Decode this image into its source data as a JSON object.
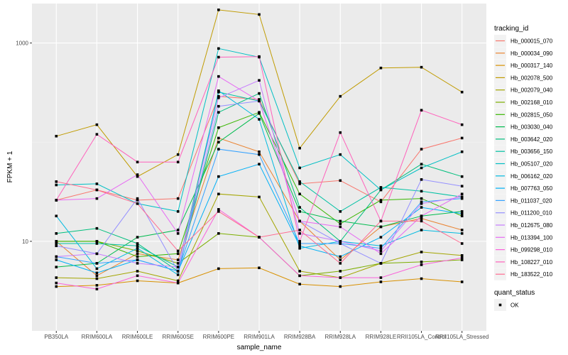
{
  "chart_data": {
    "type": "line",
    "title": "",
    "xlabel": "sample_name",
    "ylabel": "FPKM + 1",
    "yscale": "log10",
    "ylim": [
      1.25,
      2500
    ],
    "yticks": [
      10,
      1000
    ],
    "ytick_labels": [
      "10",
      "1000"
    ],
    "grid": true,
    "legend_position": "right",
    "categories": [
      "PB350LA",
      "RRIM600LA",
      "RRIM600LE",
      "RRIM600SE",
      "RRIM600PE",
      "RRIM901LA",
      "RRIM928BA",
      "RRIM928LA",
      "RRIM928LE",
      "RRII105LA_Control",
      "RRII105LA_Stressed"
    ],
    "legend": {
      "color_title": "tracking_id",
      "shape_title": "quant_status",
      "shape_entries": [
        "OK"
      ]
    },
    "series": [
      {
        "name": "Hb_000015_070",
        "color": "#F8766D",
        "values": [
          26,
          33,
          26,
          27,
          290,
          270,
          38,
          41,
          25,
          85,
          110
        ]
      },
      {
        "name": "Hb_000034_090",
        "color": "#EA8331",
        "values": [
          10,
          4.5,
          7.5,
          6.5,
          110,
          80,
          16,
          6.5,
          14,
          17,
          13
        ]
      },
      {
        "name": "Hb_000317_140",
        "color": "#D89000",
        "values": [
          3.5,
          3.6,
          4.0,
          3.8,
          5.3,
          5.4,
          3.7,
          3.5,
          3.9,
          4.2,
          3.9
        ]
      },
      {
        "name": "Hb_002078_500",
        "color": "#C09B00",
        "values": [
          115,
          150,
          45,
          75,
          2160,
          1940,
          87,
          290,
          560,
          570,
          320
        ]
      },
      {
        "name": "Hb_002079_040",
        "color": "#A3A500",
        "values": [
          4.3,
          4.2,
          5.0,
          4.0,
          30,
          28,
          5.0,
          4.3,
          6.0,
          7.8,
          7.2
        ]
      },
      {
        "name": "Hb_002168_010",
        "color": "#7CAE00",
        "values": [
          10,
          10,
          8,
          6,
          12,
          11,
          4.5,
          5,
          6,
          6.2,
          6.5
        ]
      },
      {
        "name": "Hb_002815_050",
        "color": "#39B600",
        "values": [
          10,
          10,
          7,
          7.5,
          140,
          200,
          30,
          15,
          26,
          27,
          18
        ]
      },
      {
        "name": "Hb_003030_040",
        "color": "#00BB4E",
        "values": [
          5.5,
          6,
          11,
          13,
          100,
          195,
          20,
          16,
          14,
          18,
          20
        ]
      },
      {
        "name": "Hb_003642_020",
        "color": "#00BF7D",
        "values": [
          12,
          13.5,
          9.5,
          5,
          200,
          310,
          22,
          10,
          33,
          60,
          45
        ]
      },
      {
        "name": "Hb_003656_150",
        "color": "#00C1A3",
        "values": [
          9.5,
          9.5,
          9,
          5.5,
          320,
          260,
          40,
          20,
          35,
          32,
          28
        ]
      },
      {
        "name": "Hb_005107_020",
        "color": "#00BFC4",
        "values": [
          37,
          38,
          24,
          20,
          880,
          720,
          55,
          75,
          33,
          55,
          80
        ]
      },
      {
        "name": "Hb_006162_020",
        "color": "#00BAE0",
        "values": [
          18,
          5.3,
          8.5,
          4.6,
          330,
          170,
          8.5,
          10,
          9,
          13,
          12
        ]
      },
      {
        "name": "Hb_007763_050",
        "color": "#00B0F6",
        "values": [
          6.5,
          4.8,
          6.5,
          5.0,
          45,
          60,
          9,
          7,
          11,
          22,
          19
        ]
      },
      {
        "name": "Hb_011037_020",
        "color": "#35A2FF",
        "values": [
          7,
          6,
          6.5,
          5,
          85,
          75,
          9.5,
          9.5,
          8.5,
          25,
          27
        ]
      },
      {
        "name": "Hb_011200_010",
        "color": "#9590FF",
        "values": [
          9,
          7.5,
          27,
          5,
          230,
          260,
          16,
          9.5,
          6,
          42,
          36
        ]
      },
      {
        "name": "Hb_012675_080",
        "color": "#C77CFF",
        "values": [
          7,
          7.5,
          6,
          5.5,
          280,
          420,
          12,
          10,
          8,
          24,
          28
        ]
      },
      {
        "name": "Hb_013394_100",
        "color": "#E76BF3",
        "values": [
          26,
          27,
          47,
          12,
          460,
          260,
          16,
          14,
          7.5,
          18,
          30
        ]
      },
      {
        "name": "Hb_099298_010",
        "color": "#FA62DB",
        "values": [
          3.8,
          3.3,
          4.5,
          3.8,
          21,
          11,
          4.5,
          4.3,
          4.3,
          5.8,
          6.8
        ]
      },
      {
        "name": "Hb_108227_010",
        "color": "#FF62BC",
        "values": [
          26,
          120,
          63,
          63,
          720,
          730,
          10,
          125,
          16,
          210,
          150
        ]
      },
      {
        "name": "Hb_183522_010",
        "color": "#FF6C91",
        "values": [
          40,
          33,
          24,
          8,
          20,
          11,
          13,
          6,
          16,
          16,
          9.5
        ]
      }
    ]
  }
}
